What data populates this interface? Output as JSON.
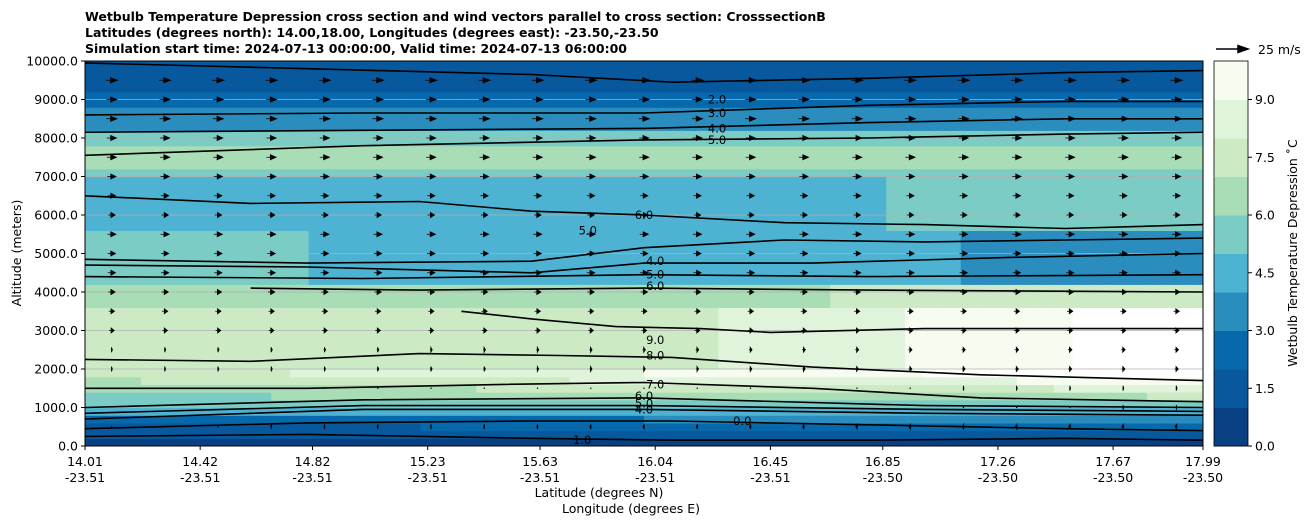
{
  "title_lines": [
    "Wetbulb Temperature Depression cross section and wind vectors parallel to cross section: CrosssectionB",
    "Latitudes (degrees north): 14.00,18.00, Longitudes (degrees east): -23.50,-23.50",
    "Simulation start time: 2024-07-13 00:00:00, Valid time: 2024-07-13 06:00:00"
  ],
  "quiver_key": {
    "label": "25 m/s",
    "speed": 25
  },
  "chart_data": {
    "type": "heatmap",
    "ylabel": "Altitude (meters)",
    "xlabel_line1": "Latitude (degrees N)",
    "xlabel_line2": "Longitude (degrees E)",
    "ylim": [
      0,
      10000
    ],
    "yticks": [
      "0.0",
      "1000.0",
      "2000.0",
      "3000.0",
      "4000.0",
      "5000.0",
      "6000.0",
      "7000.0",
      "8000.0",
      "9000.0",
      "10000.0"
    ],
    "ytick_values": [
      0,
      1000,
      2000,
      3000,
      4000,
      5000,
      6000,
      7000,
      8000,
      9000,
      10000
    ],
    "xlim": [
      14.01,
      17.99
    ],
    "xticks": [
      {
        "lat": "14.01",
        "lon": "-23.51",
        "value": 14.01
      },
      {
        "lat": "14.42",
        "lon": "-23.51",
        "value": 14.42
      },
      {
        "lat": "14.82",
        "lon": "-23.51",
        "value": 14.82
      },
      {
        "lat": "15.23",
        "lon": "-23.51",
        "value": 15.23
      },
      {
        "lat": "15.63",
        "lon": "-23.51",
        "value": 15.63
      },
      {
        "lat": "16.04",
        "lon": "-23.51",
        "value": 16.04
      },
      {
        "lat": "16.45",
        "lon": "-23.51",
        "value": 16.45
      },
      {
        "lat": "16.85",
        "lon": "-23.50",
        "value": 16.85
      },
      {
        "lat": "17.26",
        "lon": "-23.50",
        "value": 17.26
      },
      {
        "lat": "17.67",
        "lon": "-23.50",
        "value": 17.67
      },
      {
        "lat": "17.99",
        "lon": "-23.50",
        "value": 17.99
      }
    ],
    "grid": "horizontal",
    "colorbar": {
      "label": "Wetbulb Temperature Depression ˚C",
      "range": [
        0,
        10
      ],
      "ticks": [
        "0.0",
        "1.5",
        "3.0",
        "4.5",
        "6.0",
        "7.5",
        "9.0"
      ],
      "tick_values": [
        0,
        1.5,
        3.0,
        4.5,
        6.0,
        7.5,
        9.0
      ],
      "colors": [
        "#084081",
        "#08589e",
        "#0868ac",
        "#2b8cbe",
        "#4eb3d3",
        "#7bccc4",
        "#a8ddb5",
        "#ccebc5",
        "#e0f3db",
        "#f7fcf0"
      ]
    },
    "contour_levels": [
      {
        "level": 0.0,
        "label": "0.0"
      },
      {
        "level": 1.0,
        "label": "1.0"
      },
      {
        "level": 2.0,
        "label": "2.0"
      },
      {
        "level": 3.0,
        "label": "3.0"
      },
      {
        "level": 4.0,
        "label": "4.0"
      },
      {
        "level": 5.0,
        "label": "5.0"
      },
      {
        "level": 6.0,
        "label": "6.0"
      },
      {
        "level": 7.0,
        "label": "7.0"
      },
      {
        "level": 8.0,
        "label": "8.0"
      },
      {
        "level": 9.0,
        "label": "9.0"
      }
    ],
    "wind_profile": [
      {
        "z": 9500,
        "u": 12
      },
      {
        "z": 8500,
        "u": 11
      },
      {
        "z": 7500,
        "u": 10
      },
      {
        "z": 6500,
        "u": 8
      },
      {
        "z": 5500,
        "u": 9
      },
      {
        "z": 4500,
        "u": 8
      },
      {
        "z": 3500,
        "u": 6
      },
      {
        "z": 2500,
        "u": 3
      },
      {
        "z": 1500,
        "u": 1
      },
      {
        "z": 500,
        "u": -2
      }
    ]
  }
}
